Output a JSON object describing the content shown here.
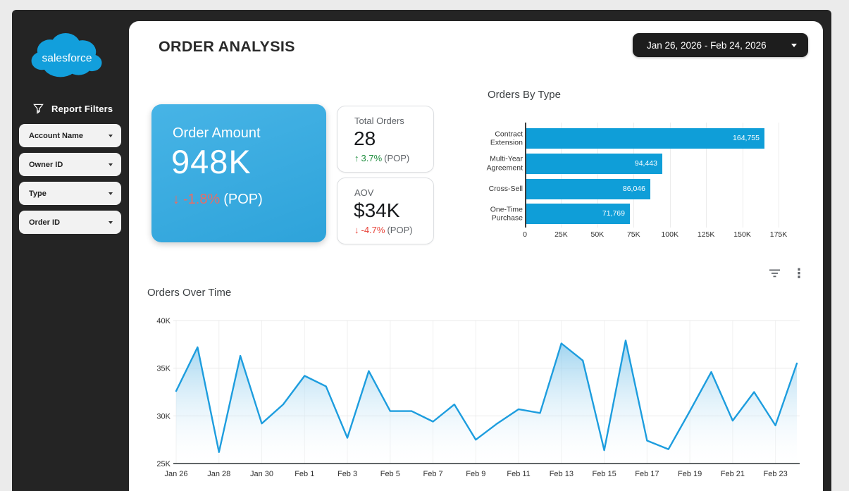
{
  "window": {
    "background": "#ebebeb",
    "frame_color": "#242424"
  },
  "icons": {
    "kebab": "⋮",
    "arrow_up": "↑",
    "arrow_down": "↓"
  },
  "colors": {
    "bar_blue": "#0f9ed8",
    "line_blue": "#1d9dde",
    "kpi_gradient_start": "#47b4e6",
    "kpi_gradient_end": "#2ea3da",
    "positive_green": "#1e8e3e",
    "negative_red": "#e8443a",
    "negative_salmon_on_blue": "#ef6a60"
  },
  "sidebar": {
    "logo_text": "salesforce",
    "filters_header": "Report Filters",
    "filters": [
      {
        "label": "Account Name"
      },
      {
        "label": "Owner ID"
      },
      {
        "label": "Type"
      },
      {
        "label": "Order ID"
      }
    ]
  },
  "header": {
    "title": "ORDER ANALYSIS",
    "date_range": "Jan 26, 2026 - Feb 24, 2026"
  },
  "kpis": {
    "order_amount": {
      "label": "Order Amount",
      "value": "948K",
      "delta": "-1.8%",
      "delta_suffix": "(POP)",
      "direction": "down"
    },
    "total_orders": {
      "label": "Total Orders",
      "value": "28",
      "delta": "3.7%",
      "delta_suffix": "(POP)",
      "direction": "up"
    },
    "aov": {
      "label": "AOV",
      "value": "$34K",
      "delta": "-4.7%",
      "delta_suffix": "(POP)",
      "direction": "down"
    }
  },
  "chart_data": [
    {
      "type": "bar",
      "title": "Orders By Type",
      "orientation": "horizontal",
      "categories": [
        "Contract Extension",
        "Multi-Year Agreement",
        "Cross-Sell",
        "One-Time Purchase"
      ],
      "category_lines": [
        [
          "Contract",
          "Extension"
        ],
        [
          "Multi-Year",
          "Agreement"
        ],
        [
          "Cross-Sell"
        ],
        [
          "One-Time",
          "Purchase"
        ]
      ],
      "values": [
        164755,
        94443,
        86046,
        71769
      ],
      "value_labels": [
        "164,755",
        "94,443",
        "86,046",
        "71,769"
      ],
      "xlim": [
        0,
        175000
      ],
      "xticks": [
        "0",
        "25K",
        "50K",
        "75K",
        "100K",
        "125K",
        "150K",
        "175K"
      ],
      "bar_color": "#0f9ed8",
      "grid": true,
      "legend": "none"
    },
    {
      "type": "area",
      "title": "Orders Over Time",
      "x": [
        "Jan 26",
        "Jan 27",
        "Jan 28",
        "Jan 29",
        "Jan 30",
        "Jan 31",
        "Feb 1",
        "Feb 2",
        "Feb 3",
        "Feb 4",
        "Feb 5",
        "Feb 6",
        "Feb 7",
        "Feb 8",
        "Feb 9",
        "Feb 10",
        "Feb 11",
        "Feb 12",
        "Feb 13",
        "Feb 14",
        "Feb 15",
        "Feb 16",
        "Feb 17",
        "Feb 18",
        "Feb 19",
        "Feb 20",
        "Feb 21",
        "Feb 22",
        "Feb 23",
        "Feb 24"
      ],
      "values": [
        32600,
        37200,
        26200,
        36300,
        29200,
        31200,
        34200,
        33100,
        27700,
        34700,
        30500,
        30500,
        29400,
        31200,
        27500,
        29200,
        30700,
        30300,
        37600,
        35800,
        26400,
        37900,
        27400,
        26500,
        30500,
        34600,
        29500,
        32500,
        29000,
        35500
      ],
      "ylim": [
        25000,
        40000
      ],
      "yticks": [
        "25K",
        "30K",
        "35K",
        "40K"
      ],
      "xticks": [
        "Jan 26",
        "Jan 28",
        "Jan 30",
        "Feb 1",
        "Feb 3",
        "Feb 5",
        "Feb 7",
        "Feb 9",
        "Feb 11",
        "Feb 13",
        "Feb 15",
        "Feb 17",
        "Feb 19",
        "Feb 21",
        "Feb 23"
      ],
      "line_color": "#1d9dde",
      "grid": true,
      "legend": "none"
    }
  ]
}
